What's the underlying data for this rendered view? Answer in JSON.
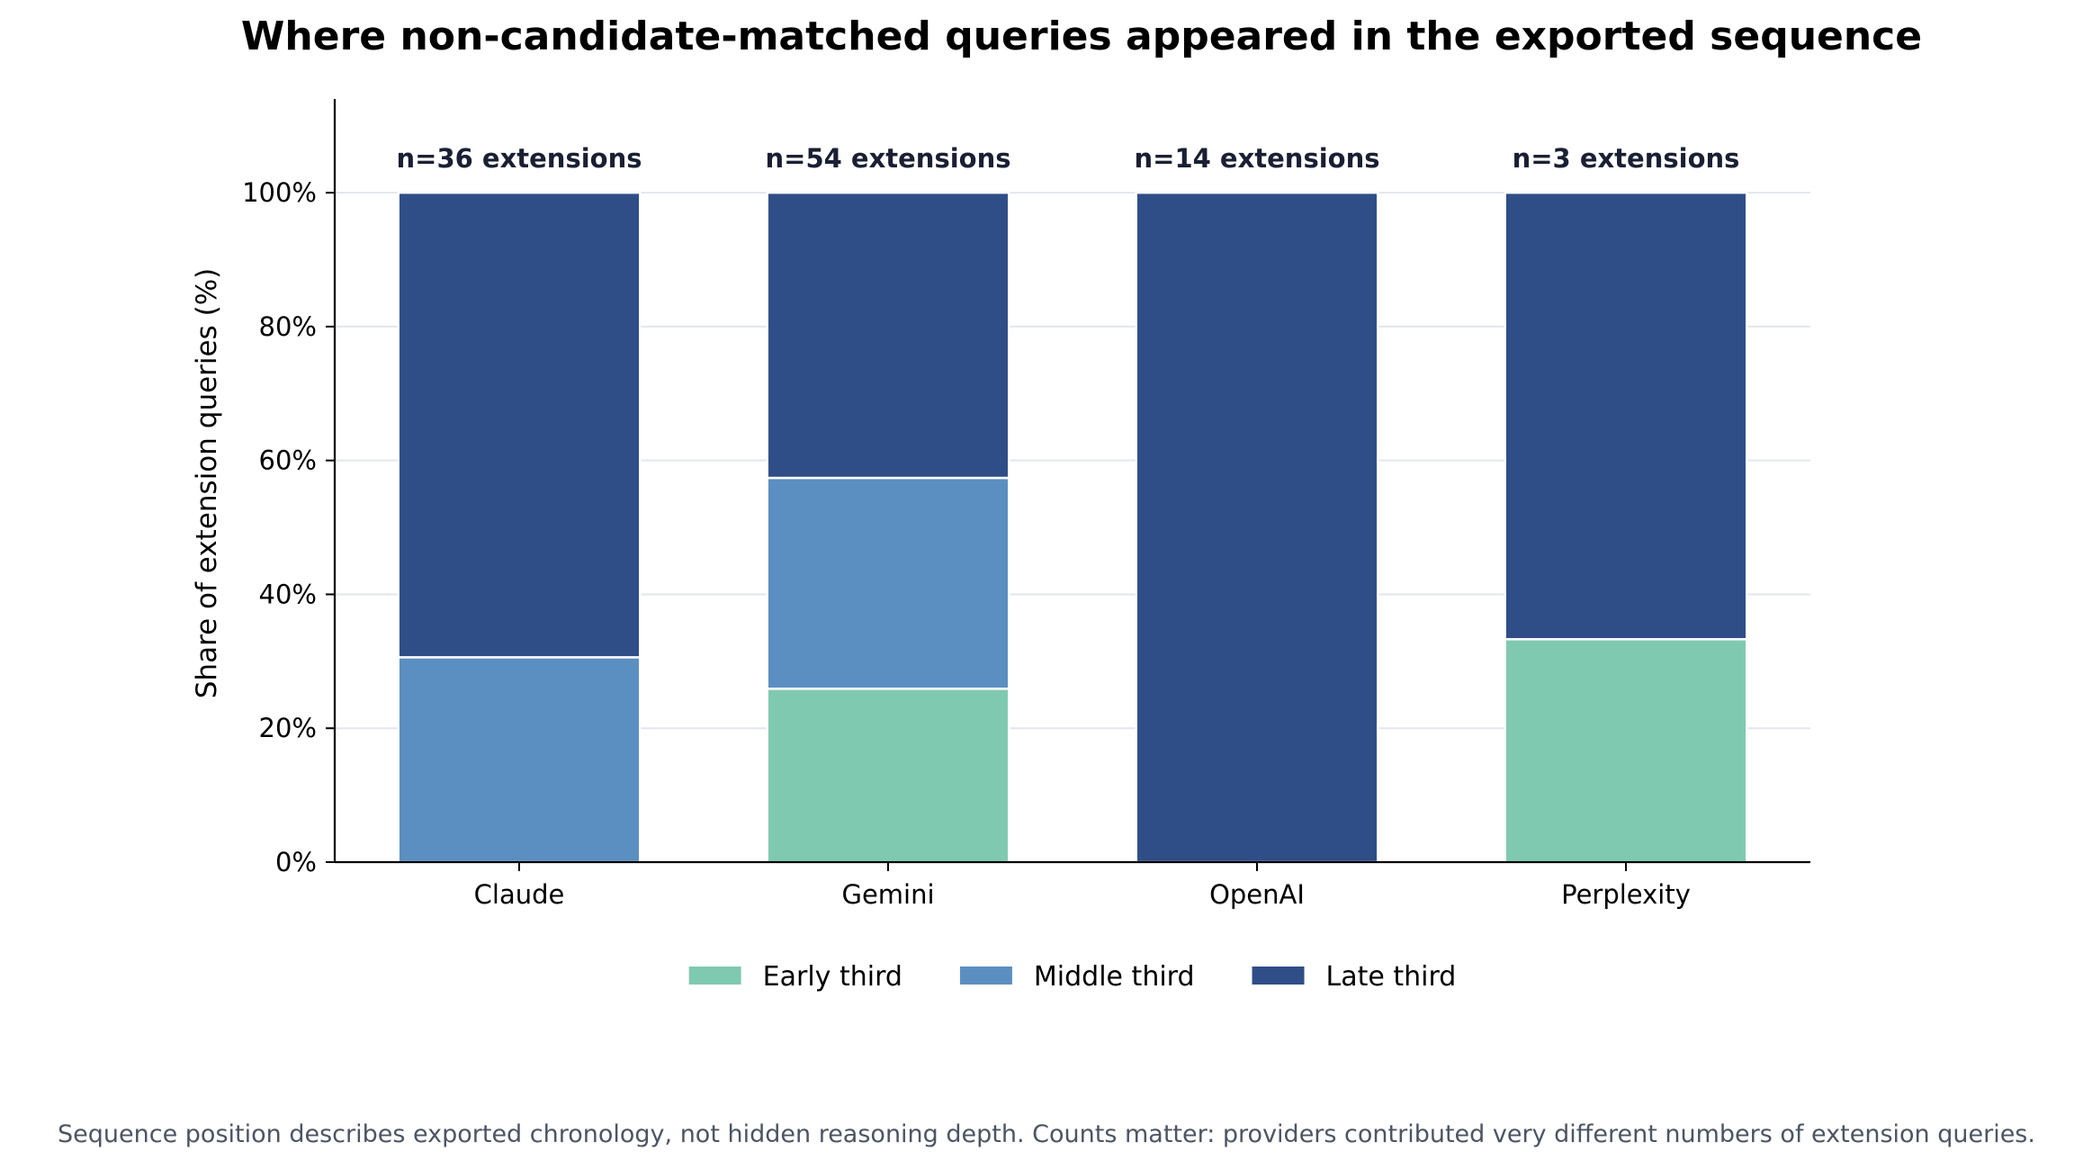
{
  "chart_data": {
    "type": "bar",
    "stacked": true,
    "title": "Where non-candidate-matched queries appeared in the exported sequence",
    "xlabel": "",
    "ylabel": "Share of extension queries (%)",
    "ylim": [
      0,
      114
    ],
    "yticks": [
      0,
      20,
      40,
      60,
      80,
      100
    ],
    "ytick_labels": [
      "0%",
      "20%",
      "40%",
      "60%",
      "80%",
      "100%"
    ],
    "grid": "horizontal",
    "legend_position": "bottom-center",
    "categories": [
      "Claude",
      "Gemini",
      "OpenAI",
      "Perplexity"
    ],
    "bar_annotations": [
      "n=36 extensions",
      "n=54 extensions",
      "n=14 extensions",
      "n=3 extensions"
    ],
    "series": [
      {
        "name": "Early third",
        "color": "#80c9b1",
        "values": [
          0,
          25.9,
          0,
          33.3
        ]
      },
      {
        "name": "Middle third",
        "color": "#5b8fc1",
        "values": [
          30.6,
          31.5,
          0,
          0
        ]
      },
      {
        "name": "Late third",
        "color": "#2f4e88",
        "values": [
          69.4,
          42.6,
          100,
          66.7
        ]
      }
    ],
    "footnote": "Sequence position describes exported chronology, not hidden reasoning depth. Counts matter: providers contributed very different numbers of extension queries."
  }
}
